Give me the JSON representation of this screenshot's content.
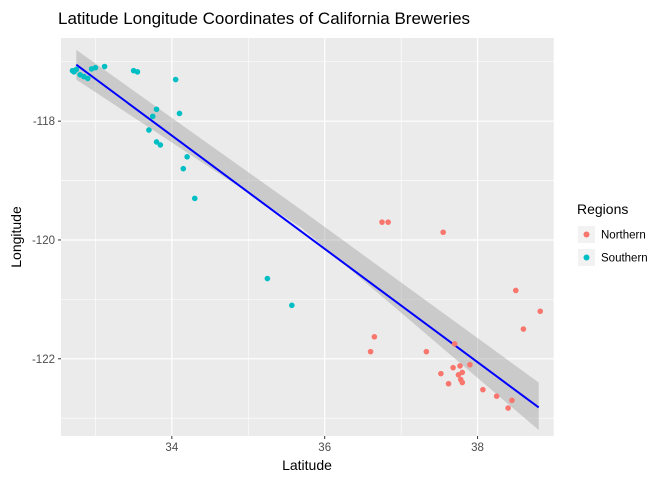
{
  "chart_data": {
    "type": "scatter",
    "title": "Latitude Longitude Coordinates of California Breweries",
    "xlabel": "Latitude",
    "ylabel": "Longitude",
    "xlim": [
      32.55,
      39.0
    ],
    "ylim": [
      -123.3,
      -116.6
    ],
    "x_ticks": [
      34,
      36,
      38
    ],
    "y_ticks": [
      -118,
      -120,
      -122
    ],
    "grid": true,
    "legend": {
      "title": "Regions",
      "position": "right"
    },
    "colors": {
      "Northern": "#F8766D",
      "Southern": "#00BFC4",
      "fit_line": "#0000FF",
      "confidence_band": "#999999",
      "panel_background": "#EBEBEB",
      "grid": "#FFFFFF"
    },
    "series": [
      {
        "name": "Northern",
        "points": [
          [
            36.75,
            -119.7
          ],
          [
            36.83,
            -119.7
          ],
          [
            37.55,
            -119.87
          ],
          [
            38.5,
            -120.85
          ],
          [
            38.82,
            -121.2
          ],
          [
            38.6,
            -121.5
          ],
          [
            36.65,
            -121.63
          ],
          [
            37.7,
            -121.75
          ],
          [
            36.6,
            -121.88
          ],
          [
            37.33,
            -121.88
          ],
          [
            37.77,
            -122.12
          ],
          [
            37.68,
            -122.15
          ],
          [
            37.8,
            -122.23
          ],
          [
            37.9,
            -122.1
          ],
          [
            37.52,
            -122.25
          ],
          [
            37.75,
            -122.27
          ],
          [
            37.78,
            -122.35
          ],
          [
            37.8,
            -122.4
          ],
          [
            37.62,
            -122.42
          ],
          [
            38.07,
            -122.52
          ],
          [
            38.25,
            -122.63
          ],
          [
            38.45,
            -122.7
          ],
          [
            38.4,
            -122.83
          ]
        ]
      },
      {
        "name": "Southern",
        "points": [
          [
            32.7,
            -117.15
          ],
          [
            32.75,
            -117.13
          ],
          [
            32.72,
            -117.17
          ],
          [
            32.8,
            -117.22
          ],
          [
            32.85,
            -117.25
          ],
          [
            32.9,
            -117.28
          ],
          [
            32.95,
            -117.12
          ],
          [
            33.0,
            -117.1
          ],
          [
            33.12,
            -117.08
          ],
          [
            33.5,
            -117.15
          ],
          [
            33.55,
            -117.17
          ],
          [
            34.05,
            -117.3
          ],
          [
            33.8,
            -117.8
          ],
          [
            33.75,
            -117.92
          ],
          [
            34.1,
            -117.87
          ],
          [
            33.7,
            -118.15
          ],
          [
            33.8,
            -118.35
          ],
          [
            33.85,
            -118.4
          ],
          [
            34.2,
            -118.6
          ],
          [
            34.15,
            -118.8
          ],
          [
            34.3,
            -119.3
          ],
          [
            35.25,
            -120.65
          ],
          [
            35.57,
            -121.1
          ]
        ]
      }
    ],
    "fit_line": {
      "method": "linear",
      "from": [
        32.75,
        -117.05
      ],
      "to": [
        38.8,
        -122.82
      ]
    },
    "confidence_band": {
      "upper": [
        [
          32.75,
          -116.8
        ],
        [
          35.7,
          -119.5
        ],
        [
          38.8,
          -122.4
        ]
      ],
      "lower": [
        [
          32.75,
          -117.3
        ],
        [
          35.7,
          -119.8
        ],
        [
          38.8,
          -123.2
        ]
      ]
    }
  }
}
